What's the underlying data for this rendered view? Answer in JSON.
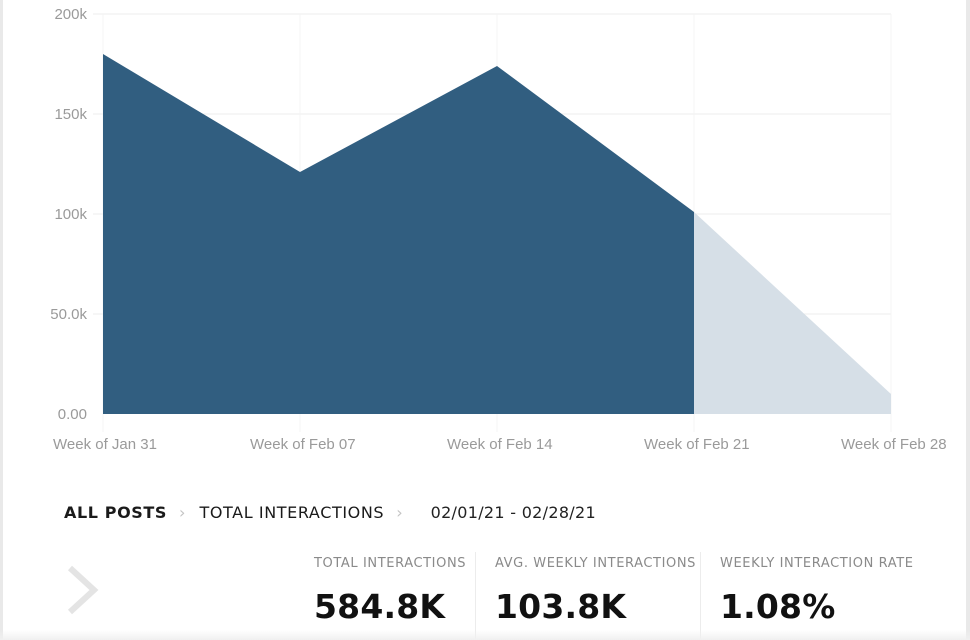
{
  "chart_data": {
    "type": "area",
    "categories": [
      "Week of Jan 31",
      "Week of Feb 07",
      "Week of Feb 14",
      "Week of Feb 21",
      "Week of Feb 28"
    ],
    "values": [
      180000,
      121000,
      174000,
      101000,
      10000
    ],
    "completed_points": 4,
    "y_ticks": [
      "0.00",
      "50.0k",
      "100k",
      "150k",
      "200k"
    ],
    "ylim": [
      0,
      200000
    ],
    "grid": true,
    "colors": {
      "fill": "#315e80",
      "projected_fill": "#d6dfe7",
      "grid": "#eeeeee"
    }
  },
  "breadcrumb": {
    "items": [
      "ALL POSTS",
      "TOTAL INTERACTIONS"
    ],
    "date_range": "02/01/21 - 02/28/21"
  },
  "stats": [
    {
      "label": "TOTAL INTERACTIONS",
      "value": "584.8K"
    },
    {
      "label": "AVG. WEEKLY INTERACTIONS",
      "value": "103.8K"
    },
    {
      "label": "WEEKLY INTERACTION RATE",
      "value": "1.08%"
    }
  ],
  "icons": {
    "crumb_separator": "chevron-right-icon",
    "nav_arrow": "chevron-right-icon"
  }
}
